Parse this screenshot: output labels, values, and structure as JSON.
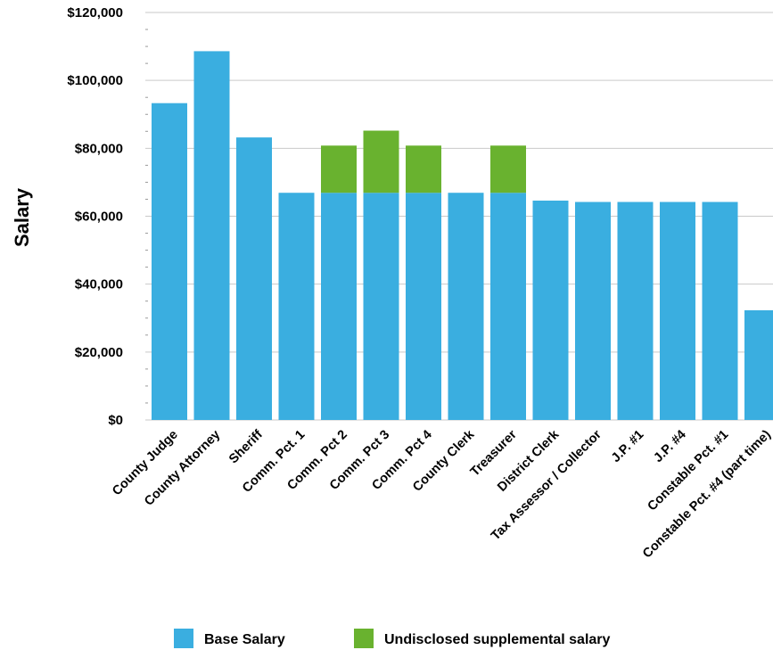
{
  "chart_data": {
    "type": "bar",
    "stacked": true,
    "ylabel": "Salary",
    "xlabel": "",
    "title": "",
    "ylim": [
      0,
      120000
    ],
    "yticks": [
      {
        "value": 0,
        "label": "$0"
      },
      {
        "value": 20000,
        "label": "$20,000"
      },
      {
        "value": 40000,
        "label": "$40,000"
      },
      {
        "value": 60000,
        "label": "$60,000"
      },
      {
        "value": 80000,
        "label": "$80,000"
      },
      {
        "value": 100000,
        "label": "$100,000"
      },
      {
        "value": 120000,
        "label": "$120,000"
      }
    ],
    "grid": true,
    "legend_position": "bottom",
    "categories": [
      "County Judge",
      "County Attorney",
      "Sheriff",
      "Comm. Pct. 1",
      "Comm. Pct 2",
      "Comm. Pct 3",
      "Comm. Pct 4",
      "County Clerk",
      "Treasurer",
      "District Clerk",
      "Tax Assessor / Collector",
      "J.P. #1",
      "J.P. #4",
      "Constable  Pct. #1",
      "Constable Pct. #4 (part time)"
    ],
    "series": [
      {
        "name": "Base Salary",
        "color": "#3aaee0",
        "values": [
          93300,
          108600,
          83200,
          66900,
          66900,
          66900,
          66900,
          66900,
          66900,
          64600,
          64200,
          64200,
          64200,
          64200,
          32300
        ]
      },
      {
        "name": "Undisclosed supplemental salary",
        "color": "#69b22f",
        "values": [
          0,
          0,
          0,
          0,
          13900,
          18300,
          13900,
          0,
          13900,
          0,
          0,
          0,
          0,
          0,
          0
        ]
      }
    ]
  }
}
